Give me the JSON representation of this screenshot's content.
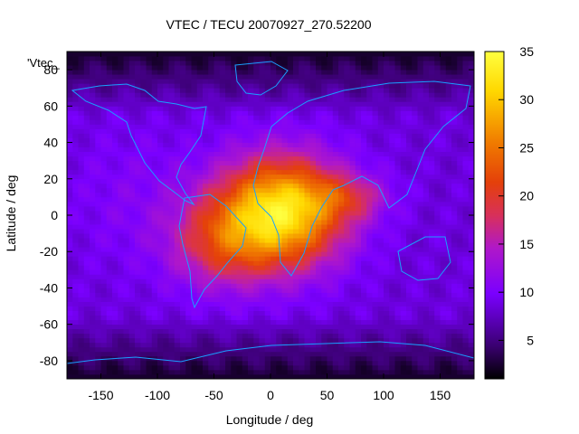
{
  "chart_data": {
    "type": "heatmap",
    "title": "VTEC / TECU 20070927_270.52200",
    "xlabel": "Longitude / deg",
    "ylabel": "Latitude / deg",
    "xlim": [
      -180,
      180
    ],
    "ylim": [
      -90,
      90
    ],
    "x_ticks": [
      -150,
      -100,
      -50,
      0,
      50,
      100,
      150
    ],
    "y_ticks": [
      -80,
      -60,
      -40,
      -20,
      0,
      20,
      40,
      60,
      80
    ],
    "colorbar": {
      "range": [
        1,
        35
      ],
      "ticks": [
        5,
        10,
        15,
        20,
        25,
        30,
        35
      ],
      "stops": [
        "#000000",
        "#3a0070",
        "#7a00ff",
        "#b018c8",
        "#d8305a",
        "#e4400a",
        "#f07a00",
        "#ffd800",
        "#ffff40"
      ]
    },
    "overlay": "coastlines",
    "legend_label": "'Vtec_",
    "peak_value": 35,
    "peak_location": [
      10,
      0
    ]
  }
}
